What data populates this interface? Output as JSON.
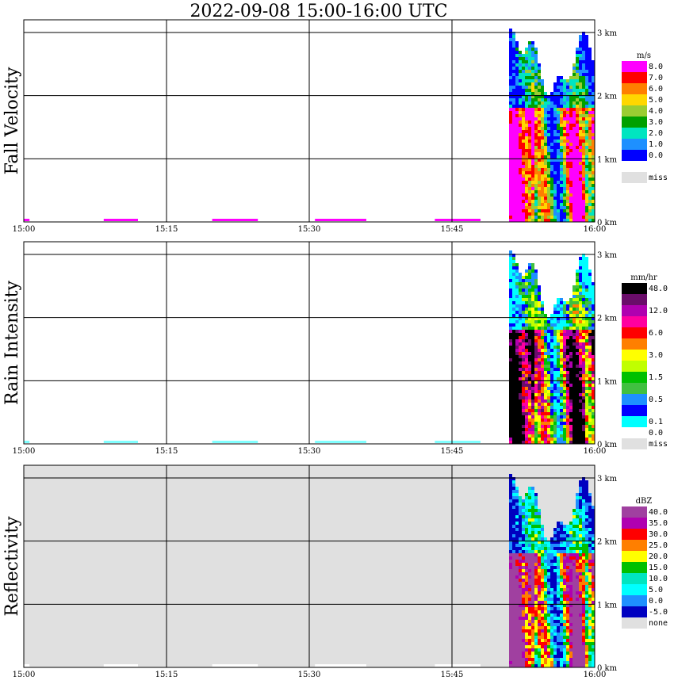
{
  "chart_data": {
    "type": "heatmap",
    "title": "2022-09-08   15:00-16:00 UTC",
    "x_tick_labels": [
      "15:00",
      "15:15",
      "15:30",
      "15:45",
      "16:00"
    ],
    "y_tick_labels": [
      "0 km",
      "1 km",
      "2 km",
      "3 km"
    ],
    "ylim_km": [
      0,
      3.2
    ],
    "grid": true,
    "panels": [
      {
        "name": "Fall Velocity",
        "ylabel": "Fall Velocity",
        "unit": "m/s",
        "colorbar": [
          {
            "label": "8.0",
            "color": "#ff00ff"
          },
          {
            "label": "7.0",
            "color": "#ff0000"
          },
          {
            "label": "6.0",
            "color": "#ff7f00"
          },
          {
            "label": "5.0",
            "color": "#ffd700"
          },
          {
            "label": "4.0",
            "color": "#9acd32"
          },
          {
            "label": "3.0",
            "color": "#00a000"
          },
          {
            "label": "2.0",
            "color": "#00e5c0"
          },
          {
            "label": "1.0",
            "color": "#1e90ff"
          },
          {
            "label": "0.0",
            "color": "#0000ff"
          },
          {
            "label": "",
            "color": "#ffffff"
          },
          {
            "label": "miss",
            "color": "#e0e0e0"
          }
        ],
        "background": "#ffffff"
      },
      {
        "name": "Rain Intensity",
        "ylabel": "Rain Intensity",
        "unit": "mm/hr",
        "colorbar": [
          {
            "label": "48.0",
            "color": "#000000"
          },
          {
            "label": "",
            "color": "#6a0d6a"
          },
          {
            "label": "12.0",
            "color": "#b000b0"
          },
          {
            "label": "",
            "color": "#ff00a0"
          },
          {
            "label": "6.0",
            "color": "#ff0000"
          },
          {
            "label": "",
            "color": "#ff7f00"
          },
          {
            "label": "3.0",
            "color": "#ffff00"
          },
          {
            "label": "",
            "color": "#c0ff00"
          },
          {
            "label": "1.5",
            "color": "#00c000"
          },
          {
            "label": "",
            "color": "#40c040"
          },
          {
            "label": "0.5",
            "color": "#1e90ff"
          },
          {
            "label": "",
            "color": "#0000ff"
          },
          {
            "label": "0.1",
            "color": "#00ffff"
          },
          {
            "label": "0.0",
            "color": "#ffffff"
          },
          {
            "label": "miss",
            "color": "#e0e0e0"
          }
        ],
        "background": "#ffffff"
      },
      {
        "name": "Reflectivity",
        "ylabel": "Reflectivity",
        "unit": "dBZ",
        "colorbar": [
          {
            "label": "40.0",
            "color": "#a040a0"
          },
          {
            "label": "35.0",
            "color": "#b000b0"
          },
          {
            "label": "30.0",
            "color": "#ff0000"
          },
          {
            "label": "25.0",
            "color": "#ff7f00"
          },
          {
            "label": "20.0",
            "color": "#ffff00"
          },
          {
            "label": "15.0",
            "color": "#00c000"
          },
          {
            "label": "10.0",
            "color": "#00e5c0"
          },
          {
            "label": "5.0",
            "color": "#00ffff"
          },
          {
            "label": "0.0",
            "color": "#1e90ff"
          },
          {
            "label": "-5.0",
            "color": "#0000c0"
          },
          {
            "label": "none",
            "color": "#e0e0e0"
          }
        ],
        "background": "#e0e0e0"
      }
    ],
    "observations": {
      "rain_onset_time": "15:51",
      "echo_top_km": 3.2,
      "surface_clutter_start": "15:00"
    }
  }
}
